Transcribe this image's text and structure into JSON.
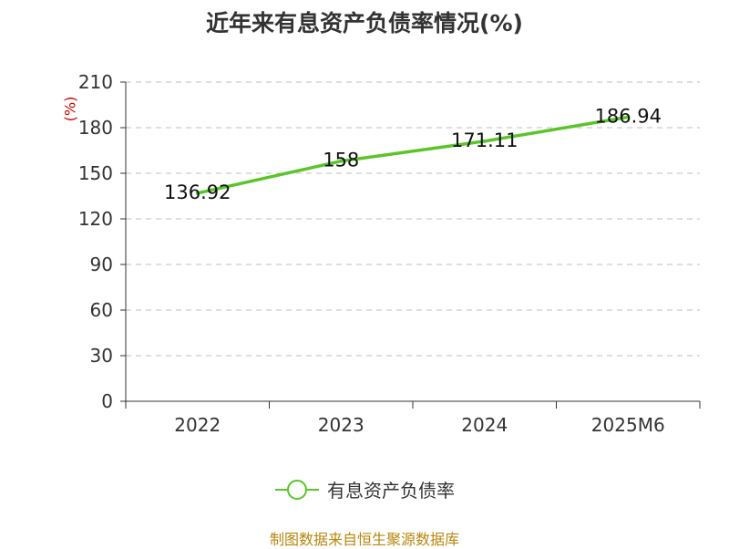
{
  "chart_data": {
    "type": "line",
    "title": "近年来有息资产负债率情况(%)",
    "unit_label": "(%)",
    "categories": [
      "2022",
      "2023",
      "2024",
      "2025M6"
    ],
    "series": [
      {
        "name": "有息资产负债率",
        "values": [
          136.92,
          158,
          171.11,
          186.94
        ],
        "labels": [
          "136.92",
          "158",
          "171.11",
          "186.94"
        ],
        "color": "#5ac428"
      }
    ],
    "yticks": [
      "0",
      "30",
      "60",
      "90",
      "120",
      "150",
      "180",
      "210"
    ],
    "ylim": [
      0,
      210
    ],
    "grid": true,
    "legend_position": "bottom"
  },
  "source": "制图数据来自恒生聚源数据库"
}
